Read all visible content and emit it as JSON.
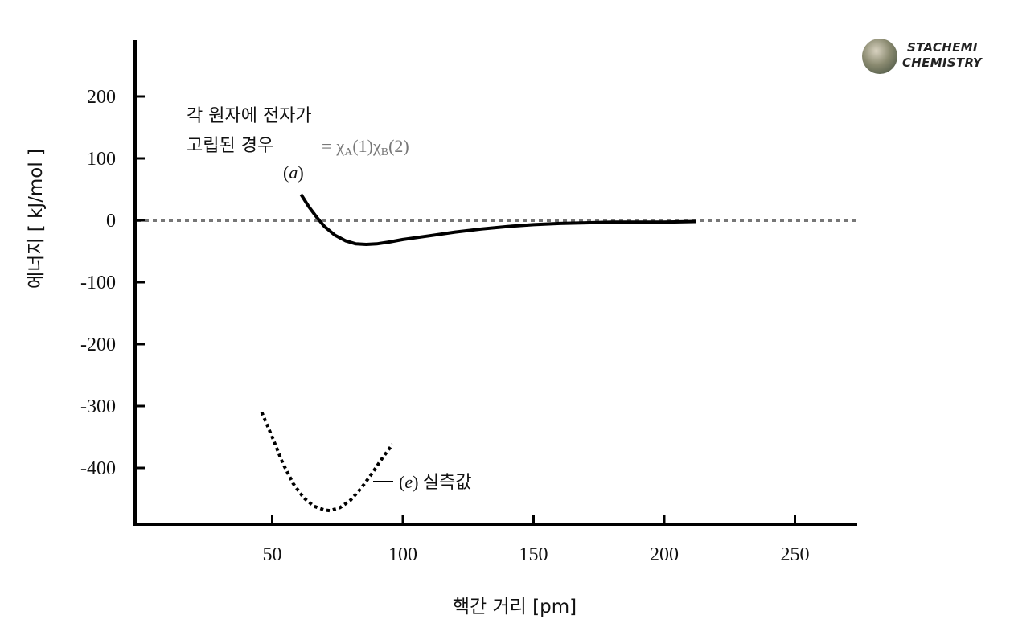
{
  "chart_data": {
    "type": "line",
    "xlabel": "핵간 거리 [pm]",
    "ylabel": "에너지 [ kJ/mol ]",
    "xlim": [
      0,
      275
    ],
    "ylim": [
      -490,
      290
    ],
    "x_ticks": [
      50,
      100,
      150,
      200,
      250
    ],
    "y_ticks": [
      200,
      100,
      0,
      -100,
      -200,
      -300,
      -400
    ],
    "reference_line_y": 0,
    "grid": false,
    "series": [
      {
        "name": "(a)",
        "style": "solid",
        "color": "#000000",
        "x": [
          61,
          64,
          67,
          70,
          74,
          78,
          82,
          86,
          90,
          95,
          100,
          110,
          120,
          130,
          140,
          150,
          160,
          170,
          180,
          190,
          200,
          212
        ],
        "y": [
          42,
          22,
          5,
          -10,
          -24,
          -33,
          -38,
          -39,
          -38,
          -35,
          -31,
          -25,
          -19,
          -14,
          -10,
          -7,
          -5,
          -4,
          -3,
          -3,
          -3,
          -2
        ]
      },
      {
        "name": "(e)",
        "style": "dotted",
        "color": "#000000",
        "x": [
          46,
          50,
          54,
          58,
          62,
          66,
          70,
          72,
          76,
          80,
          84,
          88,
          92,
          96
        ],
        "y": [
          -310,
          -350,
          -392,
          -425,
          -448,
          -462,
          -468,
          -469,
          -464,
          -452,
          -433,
          -410,
          -385,
          -362
        ]
      }
    ],
    "annotations": {
      "a_line1": "각 원자에 전자가",
      "a_line2": "고립된 경우",
      "a_label": "a",
      "e_label": "e",
      "e_text": "실측값"
    }
  },
  "logo": {
    "line1": "STACHEMI",
    "line2": "CHEMISTRY"
  }
}
